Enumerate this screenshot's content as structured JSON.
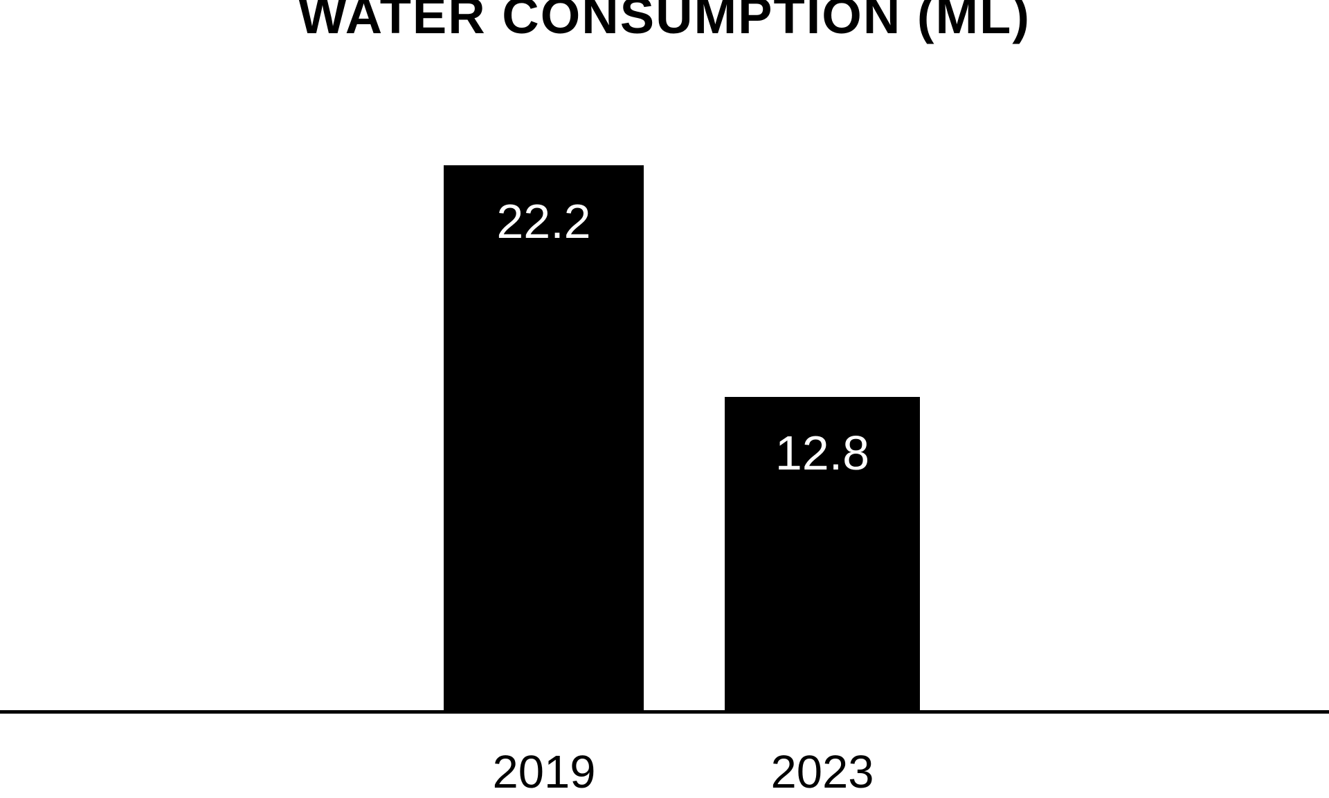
{
  "chart_data": {
    "type": "bar",
    "title": "WATER CONSUMPTION (ML)",
    "categories": [
      "2019",
      "2023"
    ],
    "values": [
      22.2,
      12.8
    ],
    "value_labels": [
      "22.2",
      "12.8"
    ],
    "xlabel": "",
    "ylabel": "",
    "ylim": [
      0,
      29
    ],
    "grid": false,
    "legend": false,
    "colors": {
      "bar": "#000000",
      "value_label": "#ffffff",
      "axis": "#000000",
      "background": "#ffffff",
      "title": "#000000"
    }
  }
}
